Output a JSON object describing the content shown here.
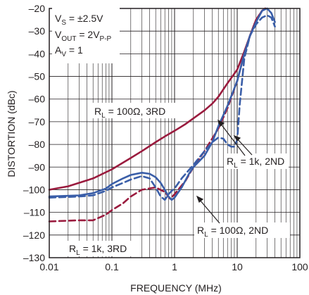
{
  "chart_data": {
    "type": "line",
    "title": "",
    "xlabel": "FREQUENCY (MHz)",
    "ylabel": "DISTORTION (dBc)",
    "x_scale": "log",
    "xlim": [
      0.01,
      100
    ],
    "ylim": [
      -130,
      -20
    ],
    "x_ticks": [
      0.01,
      0.1,
      1,
      10,
      100
    ],
    "x_tick_labels": [
      "0.01",
      "0.1",
      "1",
      "10",
      "100"
    ],
    "y_ticks": [
      -20,
      -30,
      -40,
      -50,
      -60,
      -70,
      -80,
      -90,
      -100,
      -110,
      -120,
      -130
    ],
    "y_tick_labels": [
      "–20",
      "–30",
      "–40",
      "–50",
      "–60",
      "–70",
      "–80",
      "–90",
      "–100",
      "–110",
      "–120",
      "–130"
    ],
    "grid": true,
    "conditions": {
      "vs_main": "V",
      "vs_sub": "S",
      "vs_rest": " = ±2.5V",
      "vout_main": "V",
      "vout_sub": "OUT",
      "vout_rest": " = 2V",
      "vout_sub2": "P-P",
      "av_main": "A",
      "av_sub": "V",
      "av_rest": " = 1"
    },
    "series": [
      {
        "label_main": "R",
        "label_sub": "L",
        "label_rest": " = 100Ω, 3RD",
        "color": "#9a1b3e",
        "dash": "solid",
        "points": [
          [
            0.01,
            -100
          ],
          [
            0.02,
            -98.5
          ],
          [
            0.05,
            -95
          ],
          [
            0.1,
            -91
          ],
          [
            0.2,
            -86
          ],
          [
            0.3,
            -83
          ],
          [
            0.5,
            -79
          ],
          [
            0.7,
            -76.5
          ],
          [
            1,
            -74
          ],
          [
            1.5,
            -71
          ],
          [
            2,
            -68.5
          ],
          [
            3,
            -65
          ],
          [
            4,
            -62
          ],
          [
            5,
            -59
          ],
          [
            7,
            -53
          ],
          [
            10,
            -47
          ],
          [
            13,
            -39
          ],
          [
            16,
            -32
          ],
          [
            20,
            -25
          ],
          [
            25,
            -21
          ],
          [
            28,
            -20
          ]
        ]
      },
      {
        "label_main": "R",
        "label_sub": "L",
        "label_rest": " = 1k, 3RD",
        "color": "#9a1b3e",
        "dash": "dashed",
        "points": [
          [
            0.01,
            -114
          ],
          [
            0.03,
            -113.5
          ],
          [
            0.05,
            -113.5
          ],
          [
            0.08,
            -111
          ],
          [
            0.1,
            -109
          ],
          [
            0.15,
            -106
          ],
          [
            0.2,
            -103
          ],
          [
            0.3,
            -100
          ],
          [
            0.5,
            -99
          ],
          [
            0.7,
            -101
          ],
          [
            0.85,
            -104
          ],
          [
            1,
            -102
          ],
          [
            1.5,
            -96
          ],
          [
            2,
            -90
          ],
          [
            3,
            -83
          ],
          [
            5,
            -73
          ],
          [
            7,
            -64
          ],
          [
            10,
            -52
          ],
          [
            13,
            -40
          ],
          [
            16,
            -32
          ],
          [
            20,
            -25
          ],
          [
            25,
            -21
          ],
          [
            28,
            -20
          ]
        ]
      },
      {
        "label_main": "R",
        "label_sub": "L",
        "label_rest": " = 100Ω, 2ND",
        "color": "#3a5ea8",
        "dash": "solid",
        "points": [
          [
            0.01,
            -103
          ],
          [
            0.03,
            -102.5
          ],
          [
            0.05,
            -101.5
          ],
          [
            0.08,
            -99.5
          ],
          [
            0.1,
            -97.5
          ],
          [
            0.15,
            -95
          ],
          [
            0.2,
            -93.5
          ],
          [
            0.3,
            -92.5
          ],
          [
            0.4,
            -93
          ],
          [
            0.5,
            -94.5
          ],
          [
            0.6,
            -97
          ],
          [
            0.7,
            -100
          ],
          [
            0.8,
            -103
          ],
          [
            0.9,
            -104.5
          ],
          [
            1,
            -103.5
          ],
          [
            1.3,
            -99
          ],
          [
            1.7,
            -93
          ],
          [
            2,
            -90
          ],
          [
            3,
            -85
          ],
          [
            4,
            -79
          ],
          [
            5,
            -72
          ],
          [
            7,
            -63
          ],
          [
            10,
            -52
          ],
          [
            13,
            -40
          ],
          [
            16,
            -32
          ],
          [
            20,
            -26
          ],
          [
            25,
            -21
          ],
          [
            30,
            -20
          ],
          [
            35,
            -22
          ],
          [
            40,
            -26
          ]
        ]
      },
      {
        "label_main": "R",
        "label_sub": "L",
        "label_rest": " = 1k, 2ND",
        "color": "#3a5ea8",
        "dash": "dashed",
        "points": [
          [
            0.01,
            -103.5
          ],
          [
            0.03,
            -103
          ],
          [
            0.05,
            -102.5
          ],
          [
            0.08,
            -100.5
          ],
          [
            0.1,
            -99
          ],
          [
            0.15,
            -97
          ],
          [
            0.2,
            -95.5
          ],
          [
            0.3,
            -94
          ],
          [
            0.4,
            -95
          ],
          [
            0.5,
            -99
          ],
          [
            0.6,
            -103
          ],
          [
            0.7,
            -104.5
          ],
          [
            0.8,
            -102
          ],
          [
            0.9,
            -100.5
          ],
          [
            1,
            -99.5
          ],
          [
            1.3,
            -95
          ],
          [
            2,
            -89
          ],
          [
            3,
            -83
          ],
          [
            4,
            -79
          ],
          [
            5,
            -77
          ],
          [
            6,
            -77.5
          ],
          [
            7,
            -80
          ],
          [
            8,
            -81
          ],
          [
            9,
            -81
          ],
          [
            10,
            -78
          ],
          [
            11,
            -62
          ],
          [
            13,
            -42
          ],
          [
            16,
            -32
          ],
          [
            20,
            -27
          ],
          [
            25,
            -24
          ],
          [
            30,
            -23
          ],
          [
            35,
            -24
          ],
          [
            40,
            -28
          ]
        ]
      }
    ]
  }
}
